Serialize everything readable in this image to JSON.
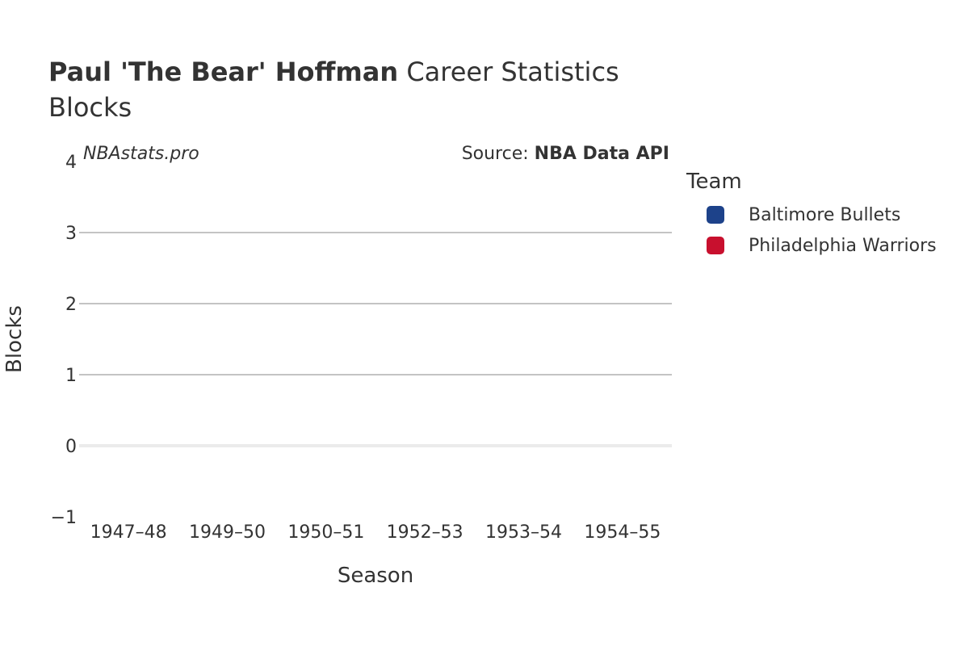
{
  "header": {
    "title_bold": "Paul 'The Bear' Hoffman",
    "title_rest": " Career Statistics",
    "subtitle": "Blocks"
  },
  "watermark": "NBAstats.pro",
  "source": {
    "prefix": "Source: ",
    "name": "NBA Data API"
  },
  "legend": {
    "title": "Team",
    "items": [
      {
        "label": "Baltimore Bullets",
        "color": "#1d428a"
      },
      {
        "label": "Philadelphia Warriors",
        "color": "#c8102e"
      }
    ]
  },
  "chart_data": {
    "type": "bar",
    "xlabel": "Season",
    "ylabel": "Blocks",
    "categories": [
      "1947–48",
      "1949–50",
      "1950–51",
      "1952–53",
      "1953–54",
      "1954–55"
    ],
    "ylim": [
      -1,
      4
    ],
    "yticks": [
      -1,
      0,
      1,
      2,
      3,
      4
    ],
    "ytick_labels": [
      "−1",
      "0",
      "1",
      "2",
      "3",
      "4"
    ],
    "grid": true,
    "legend_position": "right",
    "series": [
      {
        "name": "Baltimore Bullets",
        "color": "#1d428a",
        "values": [
          null,
          null,
          null,
          null,
          null,
          null
        ]
      },
      {
        "name": "Philadelphia Warriors",
        "color": "#c8102e",
        "values": [
          null,
          null,
          null,
          null,
          null,
          null
        ]
      }
    ]
  }
}
